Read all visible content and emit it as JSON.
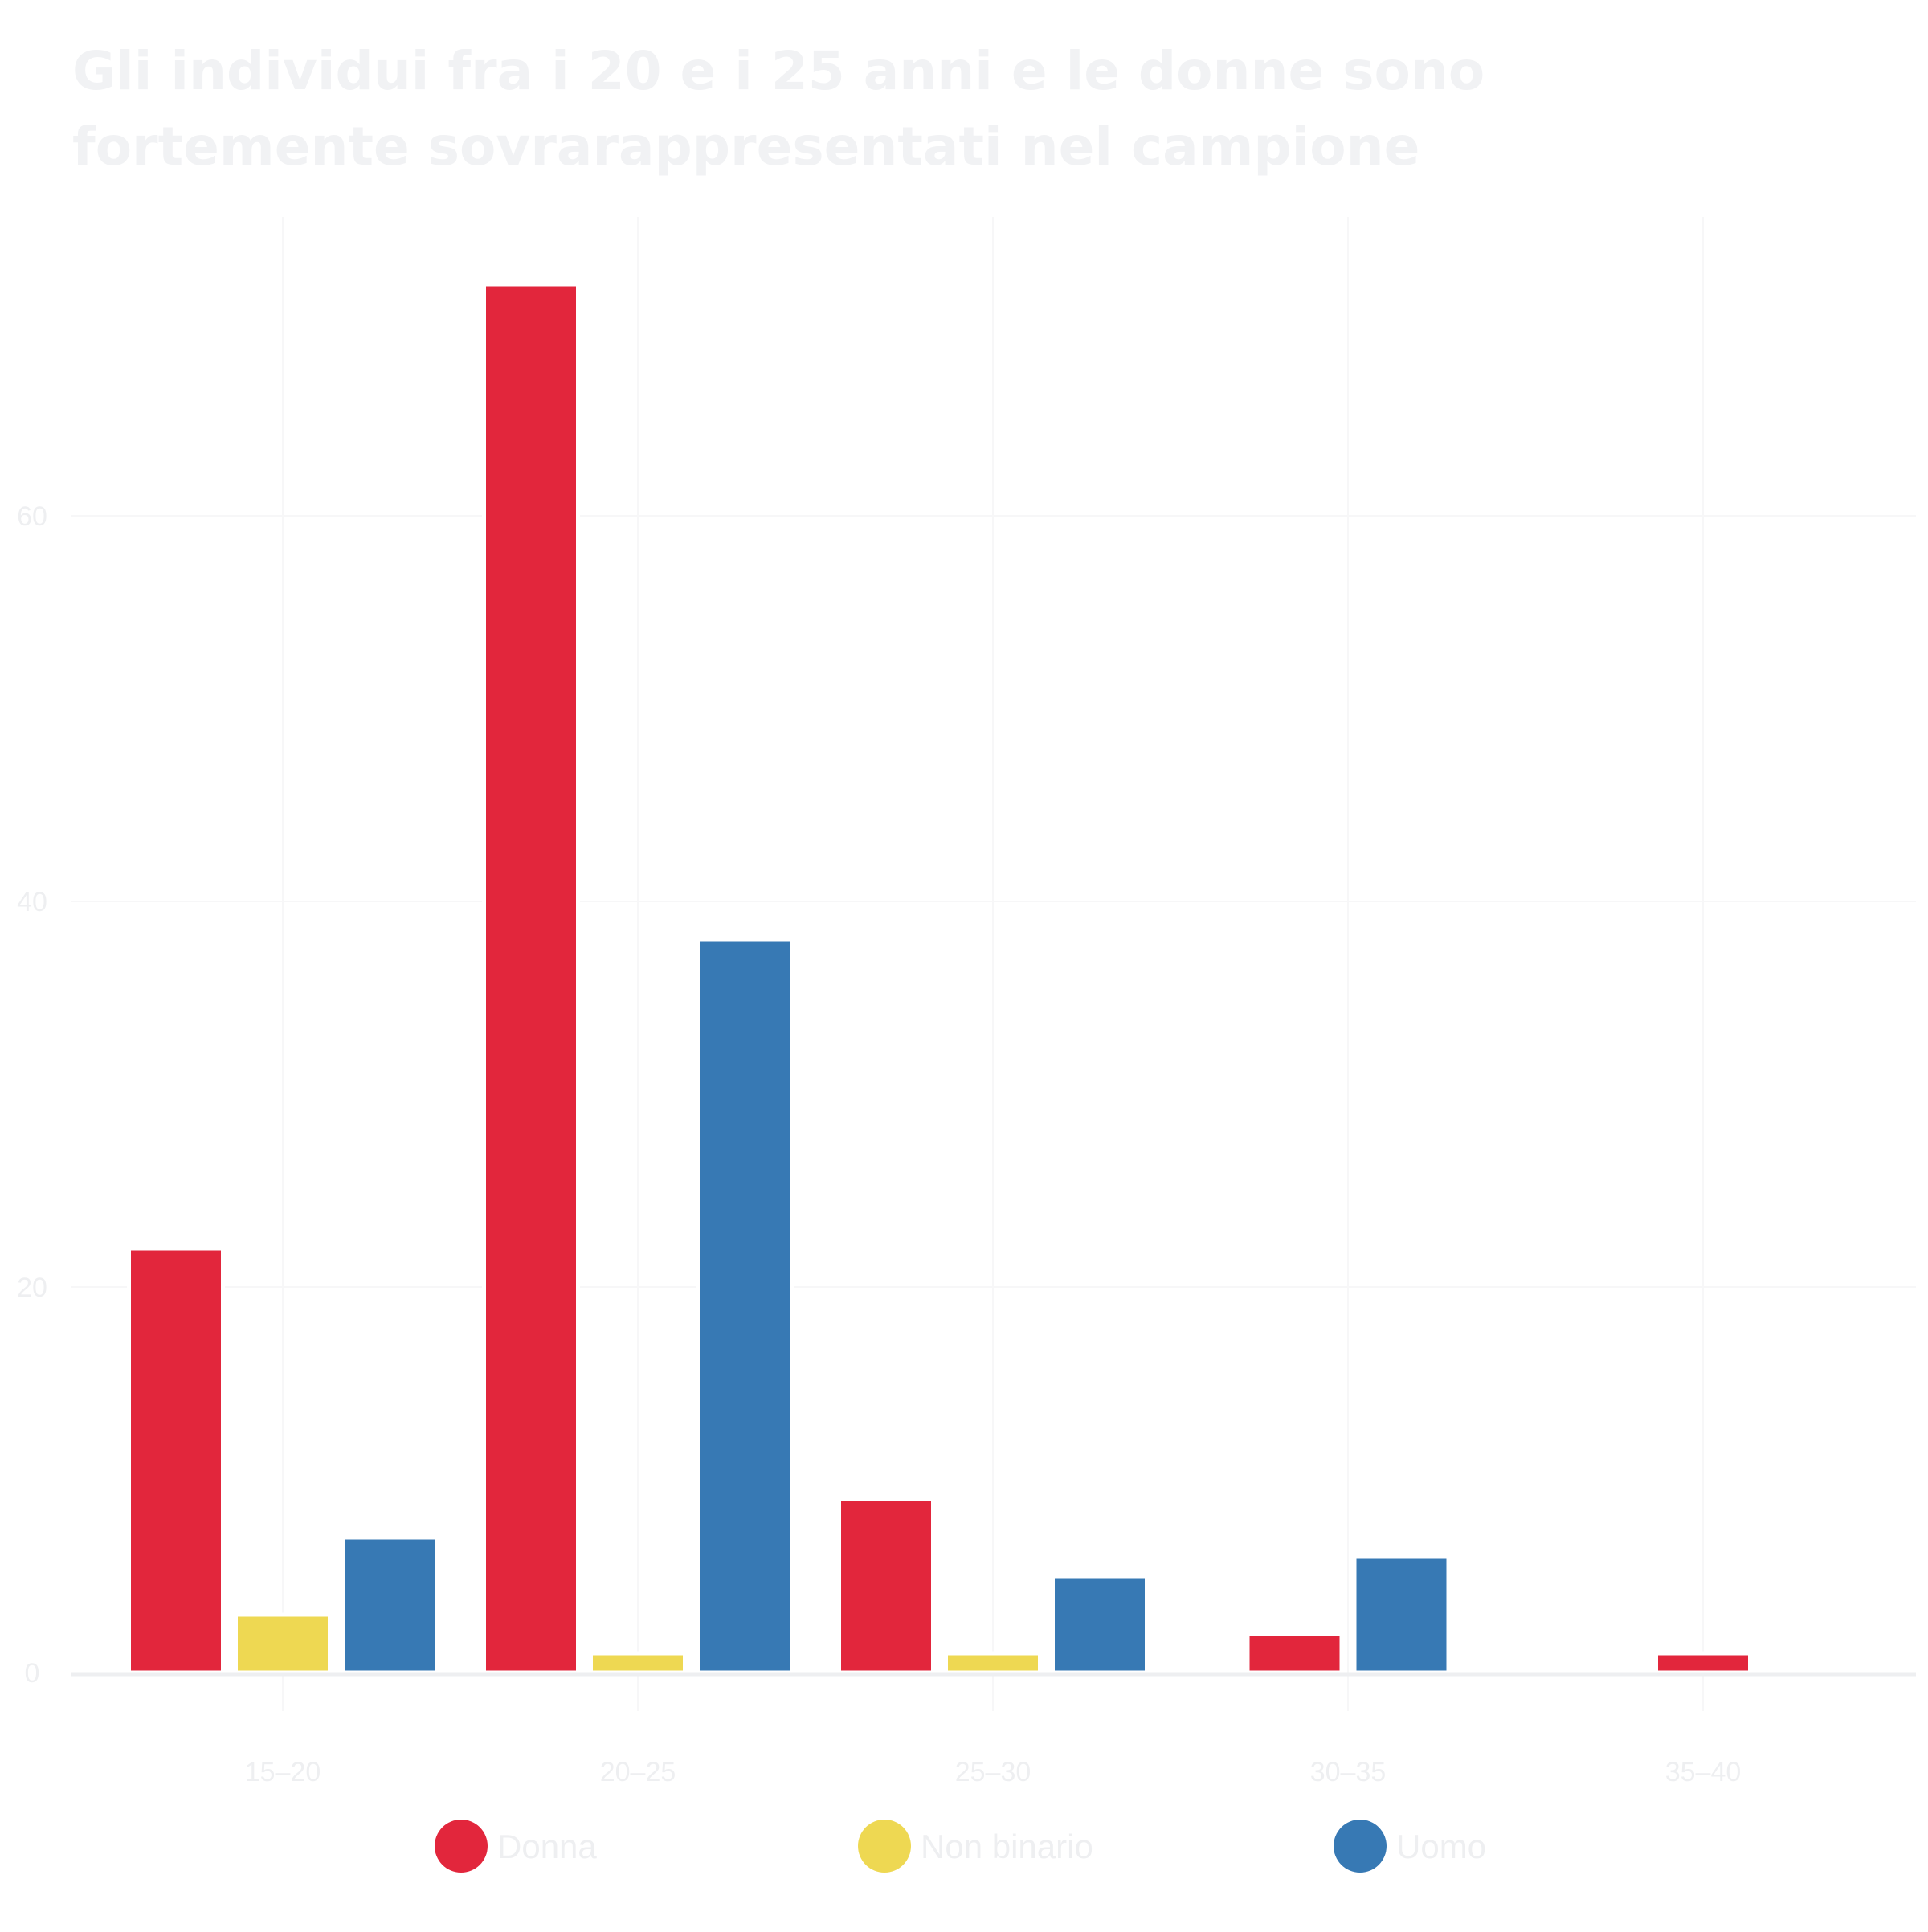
{
  "chart_data": {
    "type": "bar",
    "title": "Gli individui fra i 20 e i 25 anni e le donne sono fortemente sovrarappresentati nel campione",
    "xlabel": "",
    "ylabel": "",
    "categories": [
      "15–20",
      "20–25",
      "25–30",
      "30–35",
      "35–40"
    ],
    "series": [
      {
        "name": "Donna",
        "color": "#e2263c",
        "values": [
          22,
          72,
          9,
          2,
          1
        ]
      },
      {
        "name": "Non binario",
        "color": "#eed852",
        "values": [
          3,
          1,
          1,
          0,
          0
        ]
      },
      {
        "name": "Uomo",
        "color": "#3779b4",
        "values": [
          7,
          38,
          5,
          6,
          0
        ]
      }
    ],
    "yticks": [
      0,
      20,
      40,
      60
    ],
    "ytick_labels": [
      "0",
      "20",
      "40",
      "60"
    ],
    "ylim": [
      -3,
      76
    ],
    "grid": true,
    "legend_position": "bottom"
  }
}
